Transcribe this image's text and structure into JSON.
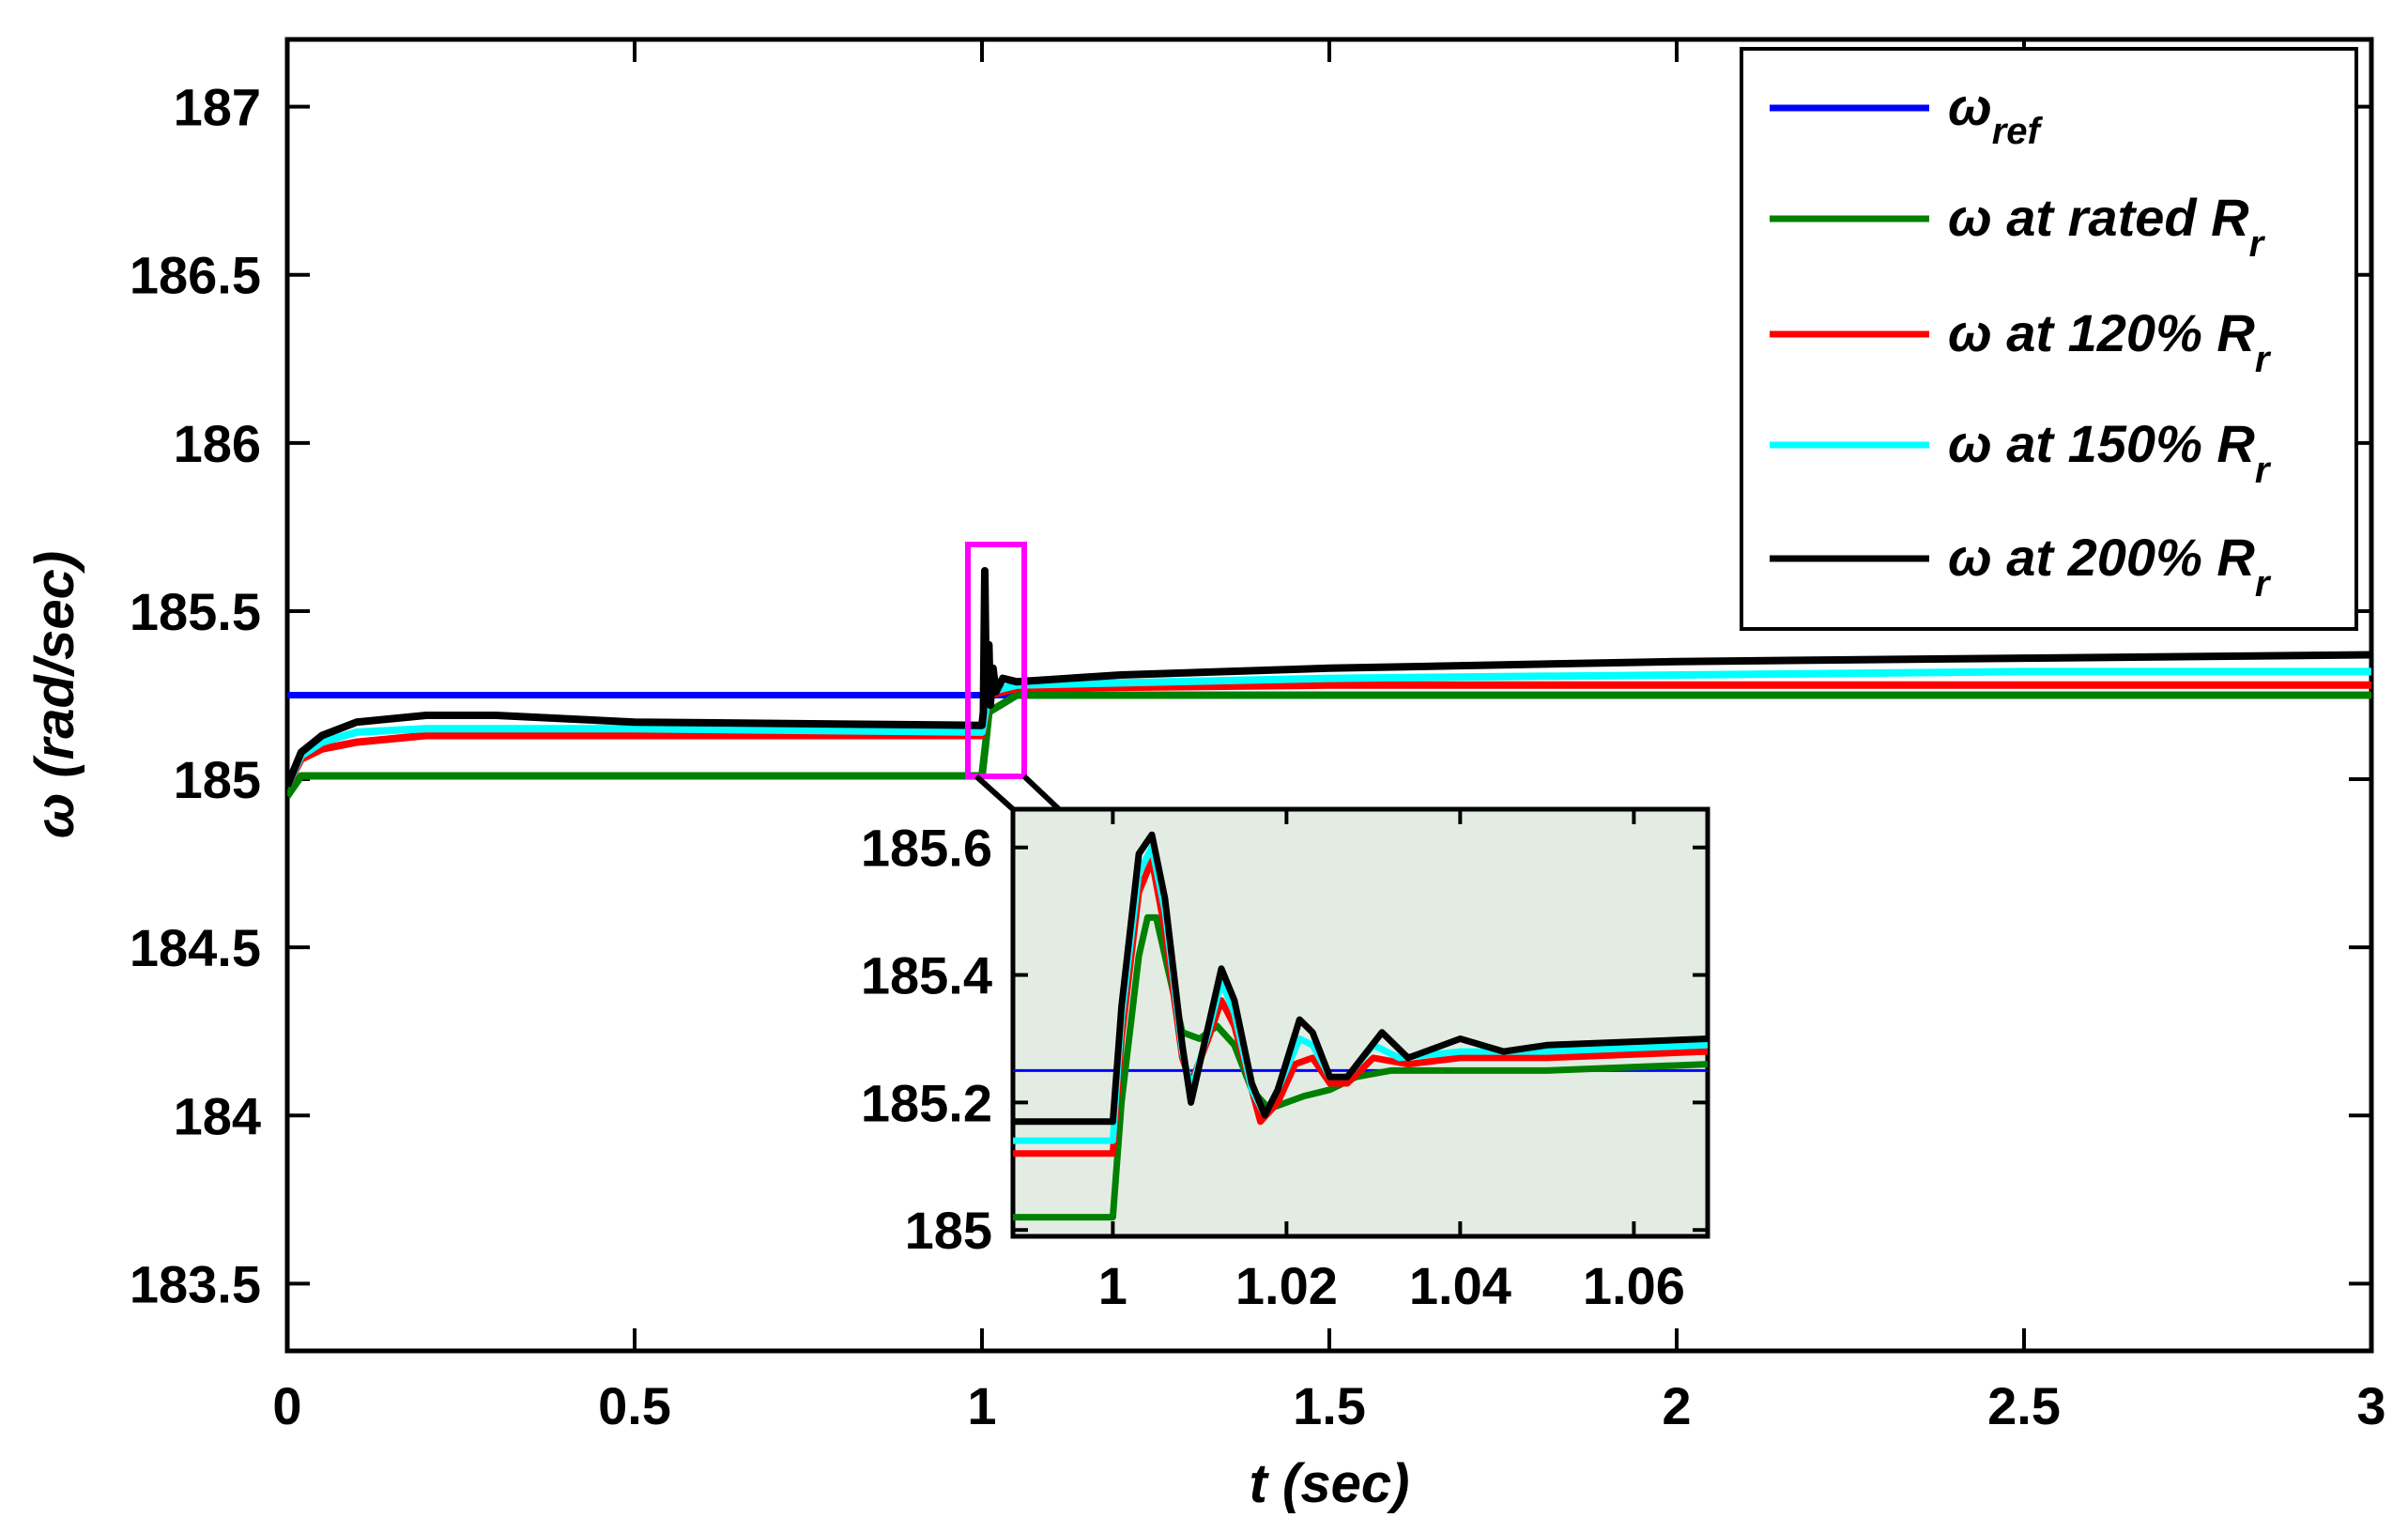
{
  "chart_data": [
    {
      "type": "line",
      "name": "main",
      "title": "",
      "xlabel": "t (sec)",
      "ylabel": "ω (rad/sec)",
      "xlim": [
        0,
        3
      ],
      "ylim": [
        183.3,
        187.2
      ],
      "xticks": [
        0,
        0.5,
        1,
        1.5,
        2,
        2.5,
        3
      ],
      "xtick_labels": [
        "0",
        "0.5",
        "1",
        "1.5",
        "2",
        "2.5",
        "3"
      ],
      "yticks": [
        183.5,
        184,
        184.5,
        185,
        185.5,
        186,
        186.5,
        187
      ],
      "ytick_labels": [
        "183.5",
        "184",
        "184.5",
        "185",
        "185.5",
        "186",
        "186.5",
        "187"
      ],
      "legend_position": "top-right",
      "series": [
        {
          "key": "ref",
          "label_main": "ω",
          "label_sub": "ref",
          "color": "#0000ff",
          "points": [
            [
              0,
              185.25
            ],
            [
              3,
              185.25
            ]
          ]
        },
        {
          "key": "rated",
          "label_main": "ω at rated R",
          "label_sub": "r",
          "color": "#008000",
          "points": [
            [
              0,
              184.95
            ],
            [
              0.02,
              185.01
            ],
            [
              1.0,
              185.01
            ],
            [
              1.005,
              185.1
            ],
            [
              1.01,
              185.2
            ],
            [
              1.05,
              185.25
            ],
            [
              3,
              185.25
            ]
          ]
        },
        {
          "key": "p120",
          "label_main": "ω at 120% R",
          "label_sub": "r",
          "color": "#ff0000",
          "points": [
            [
              0,
              184.98
            ],
            [
              0.02,
              185.06
            ],
            [
              0.05,
              185.09
            ],
            [
              0.1,
              185.11
            ],
            [
              0.2,
              185.13
            ],
            [
              1.0,
              185.13
            ],
            [
              1.01,
              185.25
            ],
            [
              1.05,
              185.27
            ],
            [
              1.5,
              185.28
            ],
            [
              3,
              185.28
            ]
          ]
        },
        {
          "key": "p150",
          "label_main": "ω at 150% R",
          "label_sub": "r",
          "color": "#00ffff",
          "points": [
            [
              0,
              184.98
            ],
            [
              0.02,
              185.07
            ],
            [
              0.05,
              185.11
            ],
            [
              0.1,
              185.14
            ],
            [
              0.2,
              185.15
            ],
            [
              0.5,
              185.15
            ],
            [
              1.0,
              185.14
            ],
            [
              1.01,
              185.26
            ],
            [
              1.05,
              185.28
            ],
            [
              1.5,
              185.3
            ],
            [
              2.5,
              185.32
            ],
            [
              3,
              185.32
            ]
          ]
        },
        {
          "key": "p200",
          "label_main": "ω at 200% R",
          "label_sub": "r",
          "color": "#000000",
          "points": [
            [
              0,
              184.98
            ],
            [
              0.02,
              185.08
            ],
            [
              0.05,
              185.13
            ],
            [
              0.1,
              185.17
            ],
            [
              0.2,
              185.19
            ],
            [
              0.3,
              185.19
            ],
            [
              0.5,
              185.17
            ],
            [
              1.0,
              185.16
            ],
            [
              1.002,
              185.2
            ],
            [
              1.004,
              185.62
            ],
            [
              1.006,
              185.3
            ],
            [
              1.01,
              185.4
            ],
            [
              1.012,
              185.22
            ],
            [
              1.016,
              185.33
            ],
            [
              1.02,
              185.26
            ],
            [
              1.03,
              185.3
            ],
            [
              1.05,
              185.29
            ],
            [
              1.2,
              185.31
            ],
            [
              1.5,
              185.33
            ],
            [
              2.0,
              185.35
            ],
            [
              2.5,
              185.36
            ],
            [
              3,
              185.37
            ]
          ]
        }
      ]
    },
    {
      "type": "line",
      "name": "inset",
      "title": "",
      "xlim": [
        0.9885,
        1.0685
      ],
      "ylim": [
        184.99,
        185.66
      ],
      "xticks": [
        1,
        1.02,
        1.04,
        1.06
      ],
      "xtick_labels": [
        "1",
        "1.02",
        "1.04",
        "1.06"
      ],
      "yticks": [
        185,
        185.2,
        185.4,
        185.6
      ],
      "ytick_labels": [
        "185",
        "185.2",
        "185.4",
        "185.6"
      ],
      "zoom_region": {
        "x": [
          1.0,
          1.07
        ],
        "y": [
          185.0,
          185.68
        ]
      },
      "series": [
        {
          "key": "ref",
          "color": "#0000ff",
          "points": [
            [
              0.9885,
              185.25
            ],
            [
              1.0685,
              185.25
            ]
          ]
        },
        {
          "key": "rated",
          "color": "#008000",
          "points": [
            [
              0.9885,
              185.02
            ],
            [
              1.0,
              185.02
            ],
            [
              1.001,
              185.2
            ],
            [
              1.003,
              185.43
            ],
            [
              1.004,
              185.49
            ],
            [
              1.005,
              185.49
            ],
            [
              1.006,
              185.43
            ],
            [
              1.008,
              185.31
            ],
            [
              1.01,
              185.3
            ],
            [
              1.012,
              185.32
            ],
            [
              1.014,
              185.29
            ],
            [
              1.016,
              185.22
            ],
            [
              1.018,
              185.19
            ],
            [
              1.02,
              185.2
            ],
            [
              1.022,
              185.21
            ],
            [
              1.025,
              185.22
            ],
            [
              1.028,
              185.24
            ],
            [
              1.032,
              185.25
            ],
            [
              1.05,
              185.25
            ],
            [
              1.0685,
              185.26
            ]
          ]
        },
        {
          "key": "p120",
          "color": "#ff0000",
          "points": [
            [
              0.9885,
              185.12
            ],
            [
              1.0,
              185.12
            ],
            [
              1.001,
              185.3
            ],
            [
              1.003,
              185.53
            ],
            [
              1.0045,
              185.58
            ],
            [
              1.006,
              185.47
            ],
            [
              1.008,
              185.27
            ],
            [
              1.009,
              185.23
            ],
            [
              1.011,
              185.3
            ],
            [
              1.0125,
              185.36
            ],
            [
              1.014,
              185.32
            ],
            [
              1.016,
              185.22
            ],
            [
              1.017,
              185.17
            ],
            [
              1.019,
              185.2
            ],
            [
              1.021,
              185.26
            ],
            [
              1.023,
              185.27
            ],
            [
              1.025,
              185.23
            ],
            [
              1.027,
              185.23
            ],
            [
              1.03,
              185.27
            ],
            [
              1.034,
              185.26
            ],
            [
              1.04,
              185.27
            ],
            [
              1.05,
              185.27
            ],
            [
              1.0685,
              185.28
            ]
          ]
        },
        {
          "key": "p150",
          "color": "#00ffff",
          "points": [
            [
              0.9885,
              185.14
            ],
            [
              1.0,
              185.14
            ],
            [
              1.001,
              185.33
            ],
            [
              1.003,
              185.56
            ],
            [
              1.0045,
              185.6
            ],
            [
              1.006,
              185.5
            ],
            [
              1.008,
              185.28
            ],
            [
              1.009,
              185.22
            ],
            [
              1.011,
              185.31
            ],
            [
              1.0125,
              185.39
            ],
            [
              1.014,
              185.34
            ],
            [
              1.016,
              185.22
            ],
            [
              1.0175,
              185.18
            ],
            [
              1.019,
              185.22
            ],
            [
              1.0215,
              185.3
            ],
            [
              1.023,
              185.29
            ],
            [
              1.025,
              185.24
            ],
            [
              1.027,
              185.24
            ],
            [
              1.03,
              185.29
            ],
            [
              1.033,
              185.27
            ],
            [
              1.04,
              185.28
            ],
            [
              1.05,
              185.28
            ],
            [
              1.0685,
              185.29
            ]
          ]
        },
        {
          "key": "p200",
          "color": "#000000",
          "points": [
            [
              0.9885,
              185.17
            ],
            [
              1.0,
              185.17
            ],
            [
              1.001,
              185.35
            ],
            [
              1.003,
              185.59
            ],
            [
              1.0045,
              185.62
            ],
            [
              1.006,
              185.52
            ],
            [
              1.008,
              185.29
            ],
            [
              1.009,
              185.2
            ],
            [
              1.011,
              185.32
            ],
            [
              1.0125,
              185.41
            ],
            [
              1.014,
              185.36
            ],
            [
              1.016,
              185.23
            ],
            [
              1.0175,
              185.18
            ],
            [
              1.019,
              185.22
            ],
            [
              1.0215,
              185.33
            ],
            [
              1.023,
              185.31
            ],
            [
              1.025,
              185.24
            ],
            [
              1.027,
              185.24
            ],
            [
              1.031,
              185.31
            ],
            [
              1.034,
              185.27
            ],
            [
              1.04,
              185.3
            ],
            [
              1.045,
              185.28
            ],
            [
              1.05,
              185.29
            ],
            [
              1.0685,
              185.3
            ]
          ]
        }
      ]
    }
  ]
}
